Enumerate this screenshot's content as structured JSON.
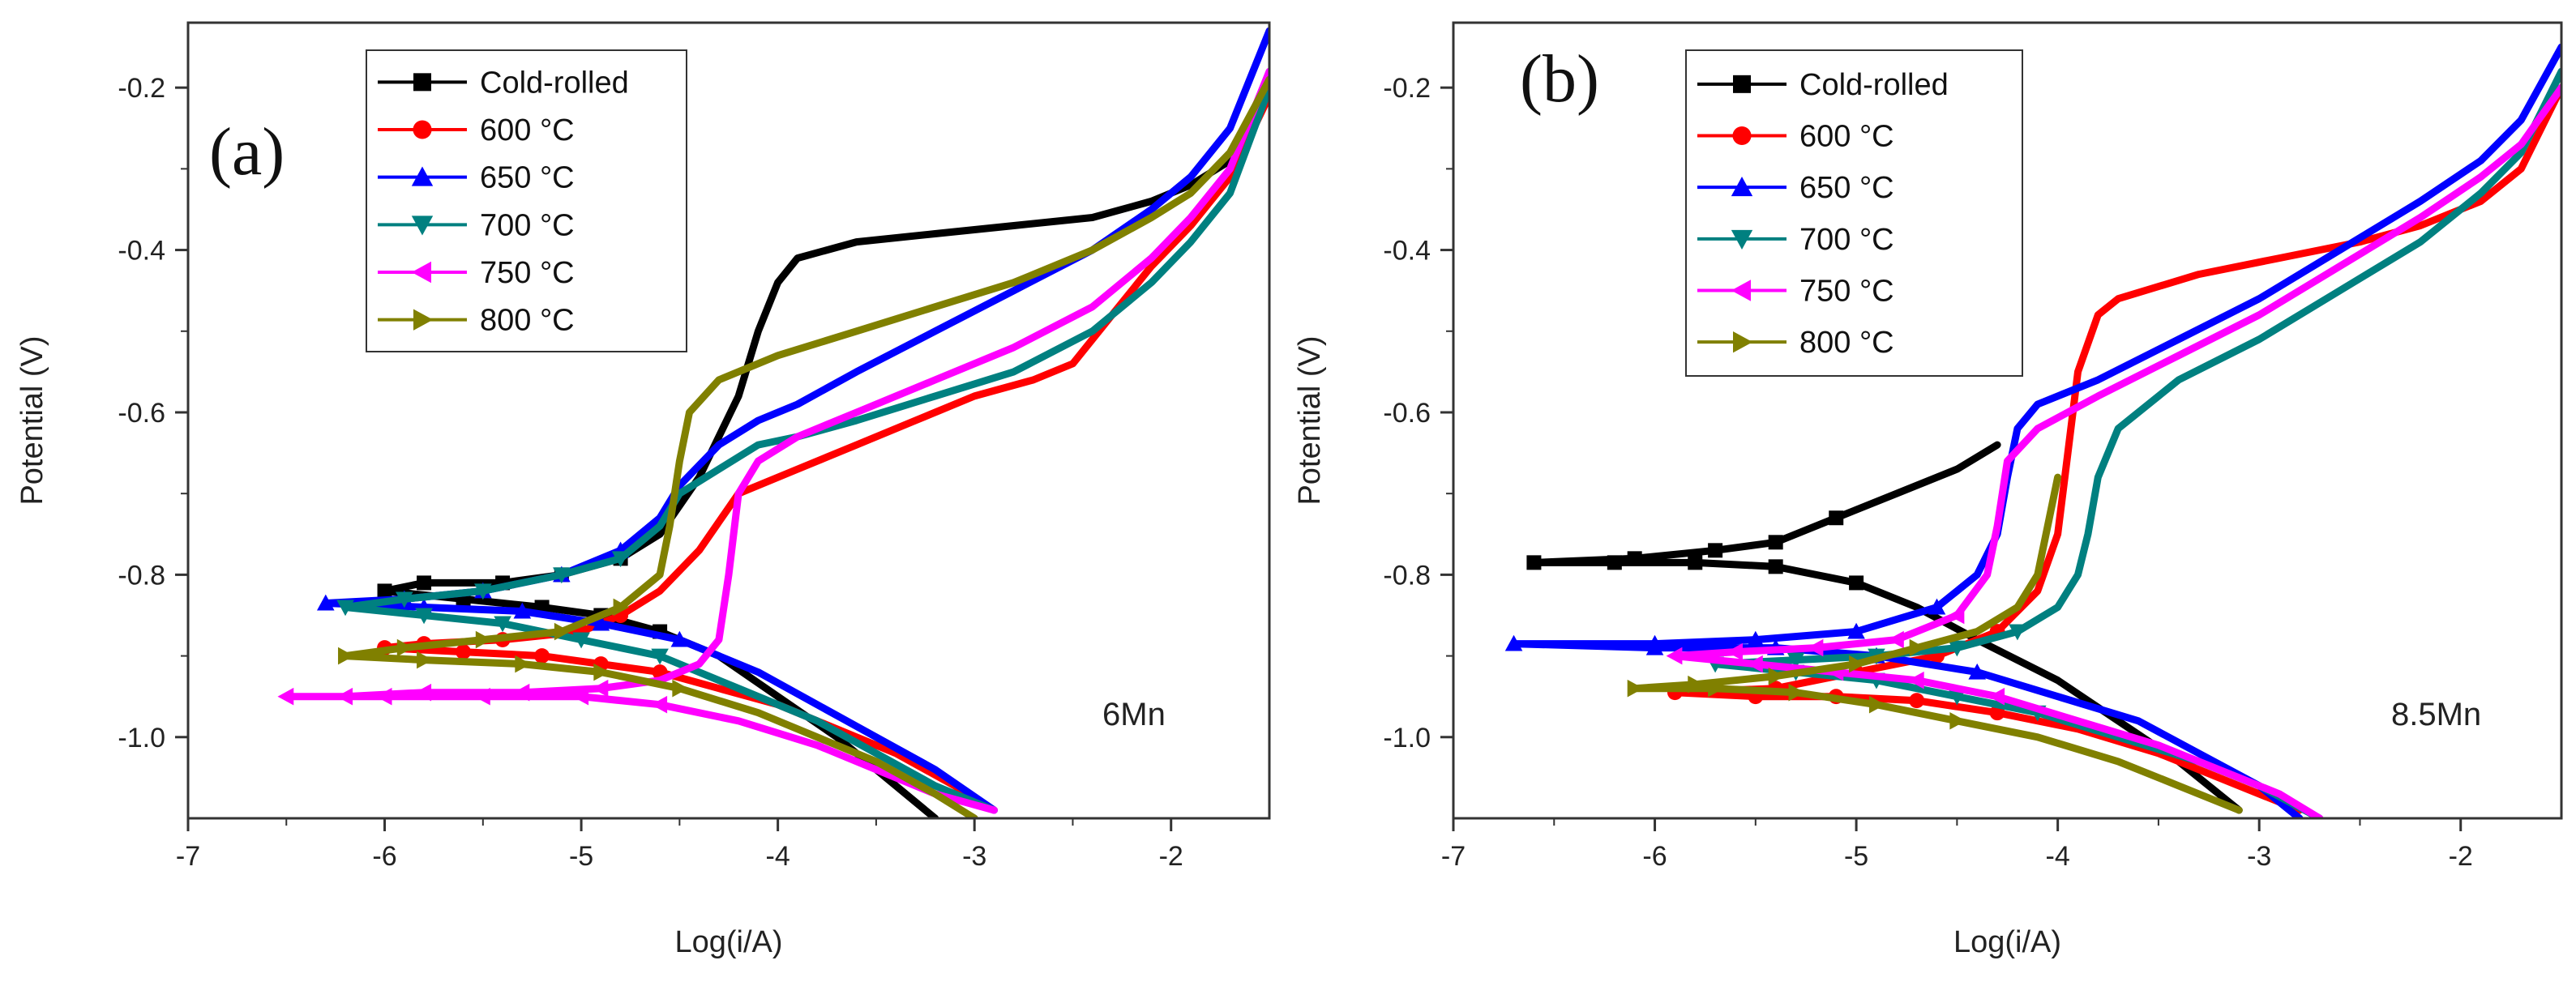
{
  "chart_data": [
    {
      "type": "line",
      "panel_label": "(a)",
      "annotation": "6Mn",
      "xlabel": "Log(i/A)",
      "ylabel": "Potential (V)",
      "xlim": [
        -7,
        -1.5
      ],
      "ylim": [
        -1.1,
        -0.12
      ],
      "xticks": [
        -7,
        -6,
        -5,
        -4,
        -3,
        -2
      ],
      "yticks": [
        -1.0,
        -0.8,
        -0.6,
        -0.4,
        -0.2
      ],
      "xtick_labels": [
        "-7",
        "-6",
        "-5",
        "-4",
        "-3",
        "-2"
      ],
      "ytick_labels": [
        "-1.0",
        "-0.8",
        "-0.6",
        "-0.4",
        "-0.2"
      ],
      "legend_position": "top-left",
      "series": [
        {
          "name": "Cold-rolled",
          "color": "#000000",
          "marker": "square",
          "x": [
            -1.5,
            -1.7,
            -1.9,
            -2.1,
            -2.4,
            -2.8,
            -3.2,
            -3.6,
            -3.9,
            -4.0,
            -4.1,
            -4.2,
            -4.4,
            -4.6,
            -4.8,
            -5.1,
            -5.4,
            -5.8,
            -6.0,
            -5.6,
            -5.2,
            -4.9,
            -4.6,
            -4.3,
            -4.0,
            -3.7,
            -3.4,
            -3.2
          ],
          "y": [
            -0.19,
            -0.29,
            -0.32,
            -0.34,
            -0.36,
            -0.37,
            -0.38,
            -0.39,
            -0.41,
            -0.44,
            -0.5,
            -0.58,
            -0.68,
            -0.75,
            -0.78,
            -0.8,
            -0.81,
            -0.81,
            -0.82,
            -0.83,
            -0.84,
            -0.85,
            -0.87,
            -0.9,
            -0.95,
            -1.0,
            -1.06,
            -1.1
          ]
        },
        {
          "name": "600 °C",
          "color": "#ff0000",
          "marker": "circle",
          "x": [
            -1.5,
            -1.7,
            -1.9,
            -2.1,
            -2.3,
            -2.5,
            -2.7,
            -3.0,
            -3.3,
            -3.6,
            -3.9,
            -4.2,
            -4.4,
            -4.6,
            -4.8,
            -5.0,
            -5.4,
            -5.8,
            -6.0,
            -5.6,
            -5.2,
            -4.9,
            -4.6,
            -4.3,
            -4.0,
            -3.7,
            -3.4,
            -3.1,
            -2.9
          ],
          "y": [
            -0.21,
            -0.31,
            -0.37,
            -0.42,
            -0.48,
            -0.54,
            -0.56,
            -0.58,
            -0.61,
            -0.64,
            -0.67,
            -0.7,
            -0.77,
            -0.82,
            -0.85,
            -0.87,
            -0.88,
            -0.885,
            -0.89,
            -0.895,
            -0.9,
            -0.91,
            -0.92,
            -0.94,
            -0.96,
            -0.99,
            -1.02,
            -1.06,
            -1.09
          ]
        },
        {
          "name": "650 °C",
          "color": "#0000ff",
          "marker": "triangle-up",
          "x": [
            -1.5,
            -1.7,
            -1.9,
            -2.1,
            -2.4,
            -2.8,
            -3.2,
            -3.6,
            -3.9,
            -4.1,
            -4.3,
            -4.5,
            -4.6,
            -4.8,
            -5.1,
            -5.5,
            -5.9,
            -6.3,
            -5.8,
            -5.3,
            -4.9,
            -4.5,
            -4.1,
            -3.8,
            -3.5,
            -3.2,
            -2.9
          ],
          "y": [
            -0.13,
            -0.25,
            -0.31,
            -0.35,
            -0.4,
            -0.45,
            -0.5,
            -0.55,
            -0.59,
            -0.61,
            -0.64,
            -0.69,
            -0.73,
            -0.77,
            -0.8,
            -0.82,
            -0.83,
            -0.835,
            -0.84,
            -0.845,
            -0.86,
            -0.88,
            -0.92,
            -0.96,
            -1.0,
            -1.04,
            -1.09
          ]
        },
        {
          "name": "700 °C",
          "color": "#008080",
          "marker": "triangle-down",
          "x": [
            -1.5,
            -1.7,
            -1.9,
            -2.1,
            -2.4,
            -2.8,
            -3.2,
            -3.6,
            -3.9,
            -4.1,
            -4.3,
            -4.5,
            -4.6,
            -4.8,
            -5.1,
            -5.5,
            -5.9,
            -6.2,
            -5.8,
            -5.4,
            -5.0,
            -4.6,
            -4.2,
            -3.8,
            -3.5,
            -3.2,
            -2.9
          ],
          "y": [
            -0.2,
            -0.33,
            -0.39,
            -0.44,
            -0.5,
            -0.55,
            -0.58,
            -0.61,
            -0.63,
            -0.64,
            -0.67,
            -0.7,
            -0.74,
            -0.78,
            -0.8,
            -0.82,
            -0.83,
            -0.84,
            -0.85,
            -0.86,
            -0.88,
            -0.9,
            -0.94,
            -0.98,
            -1.02,
            -1.06,
            -1.09
          ]
        },
        {
          "name": "750 °C",
          "color": "#ff00ff",
          "marker": "triangle-left",
          "x": [
            -1.5,
            -1.7,
            -1.9,
            -2.1,
            -2.4,
            -2.8,
            -3.2,
            -3.6,
            -3.9,
            -4.1,
            -4.2,
            -4.25,
            -4.3,
            -4.4,
            -4.6,
            -4.9,
            -5.3,
            -5.8,
            -6.2,
            -6.5,
            -6.0,
            -5.5,
            -5.0,
            -4.6,
            -4.2,
            -3.8,
            -3.5,
            -3.2,
            -2.9
          ],
          "y": [
            -0.18,
            -0.3,
            -0.36,
            -0.41,
            -0.47,
            -0.52,
            -0.56,
            -0.6,
            -0.63,
            -0.66,
            -0.7,
            -0.8,
            -0.88,
            -0.91,
            -0.93,
            -0.94,
            -0.945,
            -0.945,
            -0.95,
            -0.95,
            -0.95,
            -0.95,
            -0.95,
            -0.96,
            -0.98,
            -1.01,
            -1.04,
            -1.07,
            -1.09
          ]
        },
        {
          "name": "800 °C",
          "color": "#808000",
          "marker": "triangle-right",
          "x": [
            -1.5,
            -1.7,
            -1.9,
            -2.1,
            -2.4,
            -2.8,
            -3.2,
            -3.6,
            -4.0,
            -4.3,
            -4.45,
            -4.5,
            -4.55,
            -4.6,
            -4.8,
            -5.1,
            -5.5,
            -5.9,
            -6.2,
            -5.8,
            -5.3,
            -4.9,
            -4.5,
            -4.1,
            -3.8,
            -3.5,
            -3.2,
            -3.0
          ],
          "y": [
            -0.19,
            -0.28,
            -0.33,
            -0.36,
            -0.4,
            -0.44,
            -0.47,
            -0.5,
            -0.53,
            -0.56,
            -0.6,
            -0.66,
            -0.74,
            -0.8,
            -0.84,
            -0.87,
            -0.88,
            -0.89,
            -0.9,
            -0.905,
            -0.91,
            -0.92,
            -0.94,
            -0.97,
            -1.0,
            -1.03,
            -1.07,
            -1.1
          ]
        }
      ]
    },
    {
      "type": "line",
      "panel_label": "(b)",
      "annotation": "8.5Mn",
      "xlabel": "Log(i/A)",
      "ylabel": "Potential (V)",
      "xlim": [
        -7,
        -1.5
      ],
      "ylim": [
        -1.1,
        -0.12
      ],
      "xticks": [
        -7,
        -6,
        -5,
        -4,
        -3,
        -2
      ],
      "yticks": [
        -1.0,
        -0.8,
        -0.6,
        -0.4,
        -0.2
      ],
      "xtick_labels": [
        "-7",
        "-6",
        "-5",
        "-4",
        "-3",
        "-2"
      ],
      "ytick_labels": [
        "-1.0",
        "-0.8",
        "-0.6",
        "-0.4",
        "-0.2"
      ],
      "legend_position": "top-left",
      "series": [
        {
          "name": "Cold-rolled",
          "color": "#000000",
          "marker": "square",
          "x": [
            -4.3,
            -4.5,
            -4.8,
            -5.1,
            -5.4,
            -5.7,
            -6.1,
            -6.6,
            -6.2,
            -5.8,
            -5.4,
            -5.0,
            -4.7,
            -4.4,
            -4.0,
            -3.7,
            -3.4,
            -3.1
          ],
          "y": [
            -0.64,
            -0.67,
            -0.7,
            -0.73,
            -0.76,
            -0.77,
            -0.78,
            -0.785,
            -0.785,
            -0.785,
            -0.79,
            -0.81,
            -0.84,
            -0.88,
            -0.93,
            -0.98,
            -1.03,
            -1.09
          ]
        },
        {
          "name": "600 °C",
          "color": "#ff0000",
          "marker": "circle",
          "x": [
            -1.5,
            -1.7,
            -1.9,
            -2.2,
            -2.5,
            -2.9,
            -3.3,
            -3.7,
            -3.8,
            -3.9,
            -3.95,
            -4.0,
            -4.1,
            -4.3,
            -4.6,
            -5.0,
            -5.4,
            -5.9,
            -5.5,
            -5.1,
            -4.7,
            -4.3,
            -3.9,
            -3.5,
            -3.1,
            -2.8
          ],
          "y": [
            -0.2,
            -0.3,
            -0.34,
            -0.37,
            -0.39,
            -0.41,
            -0.43,
            -0.46,
            -0.48,
            -0.55,
            -0.65,
            -0.75,
            -0.82,
            -0.87,
            -0.9,
            -0.92,
            -0.94,
            -0.945,
            -0.95,
            -0.95,
            -0.955,
            -0.97,
            -0.99,
            -1.02,
            -1.06,
            -1.09
          ]
        },
        {
          "name": "650 °C",
          "color": "#0000ff",
          "marker": "triangle-up",
          "x": [
            -1.5,
            -1.7,
            -1.9,
            -2.2,
            -2.6,
            -3.0,
            -3.4,
            -3.8,
            -4.1,
            -4.2,
            -4.25,
            -4.3,
            -4.4,
            -4.6,
            -5.0,
            -5.5,
            -6.0,
            -6.7,
            -6.0,
            -5.4,
            -4.9,
            -4.4,
            -4.0,
            -3.6,
            -3.3,
            -3.0,
            -2.8
          ],
          "y": [
            -0.15,
            -0.24,
            -0.29,
            -0.34,
            -0.4,
            -0.46,
            -0.51,
            -0.56,
            -0.59,
            -0.62,
            -0.68,
            -0.75,
            -0.8,
            -0.84,
            -0.87,
            -0.88,
            -0.885,
            -0.885,
            -0.89,
            -0.89,
            -0.9,
            -0.92,
            -0.95,
            -0.98,
            -1.02,
            -1.06,
            -1.1
          ]
        },
        {
          "name": "700 °C",
          "color": "#008080",
          "marker": "triangle-down",
          "x": [
            -1.5,
            -1.7,
            -1.9,
            -2.2,
            -2.6,
            -3.0,
            -3.4,
            -3.7,
            -3.8,
            -3.85,
            -3.9,
            -4.0,
            -4.2,
            -4.5,
            -4.9,
            -5.3,
            -5.7,
            -5.3,
            -4.9,
            -4.5,
            -4.1,
            -3.7,
            -3.3,
            -3.0,
            -2.7
          ],
          "y": [
            -0.18,
            -0.28,
            -0.33,
            -0.39,
            -0.45,
            -0.51,
            -0.56,
            -0.62,
            -0.68,
            -0.75,
            -0.8,
            -0.84,
            -0.87,
            -0.89,
            -0.9,
            -0.905,
            -0.91,
            -0.92,
            -0.93,
            -0.95,
            -0.97,
            -1.0,
            -1.03,
            -1.06,
            -1.1
          ]
        },
        {
          "name": "750 °C",
          "color": "#ff00ff",
          "marker": "triangle-left",
          "x": [
            -1.5,
            -1.7,
            -1.9,
            -2.2,
            -2.6,
            -3.0,
            -3.4,
            -3.8,
            -4.1,
            -4.25,
            -4.3,
            -4.35,
            -4.5,
            -4.8,
            -5.2,
            -5.6,
            -5.9,
            -5.5,
            -5.1,
            -4.7,
            -4.3,
            -3.9,
            -3.5,
            -3.2,
            -2.9,
            -2.7
          ],
          "y": [
            -0.2,
            -0.27,
            -0.31,
            -0.36,
            -0.42,
            -0.48,
            -0.53,
            -0.58,
            -0.62,
            -0.66,
            -0.74,
            -0.8,
            -0.85,
            -0.88,
            -0.89,
            -0.895,
            -0.9,
            -0.91,
            -0.92,
            -0.93,
            -0.95,
            -0.98,
            -1.01,
            -1.04,
            -1.07,
            -1.1
          ]
        },
        {
          "name": "800 °C",
          "color": "#808000",
          "marker": "triangle-right",
          "x": [
            -4.0,
            -4.05,
            -4.1,
            -4.2,
            -4.4,
            -4.7,
            -5.0,
            -5.4,
            -5.8,
            -6.1,
            -5.7,
            -5.3,
            -4.9,
            -4.5,
            -4.1,
            -3.7,
            -3.4,
            -3.1
          ],
          "y": [
            -0.68,
            -0.74,
            -0.8,
            -0.84,
            -0.87,
            -0.89,
            -0.91,
            -0.925,
            -0.935,
            -0.94,
            -0.94,
            -0.945,
            -0.96,
            -0.98,
            -1.0,
            -1.03,
            -1.06,
            -1.09
          ]
        }
      ]
    }
  ]
}
